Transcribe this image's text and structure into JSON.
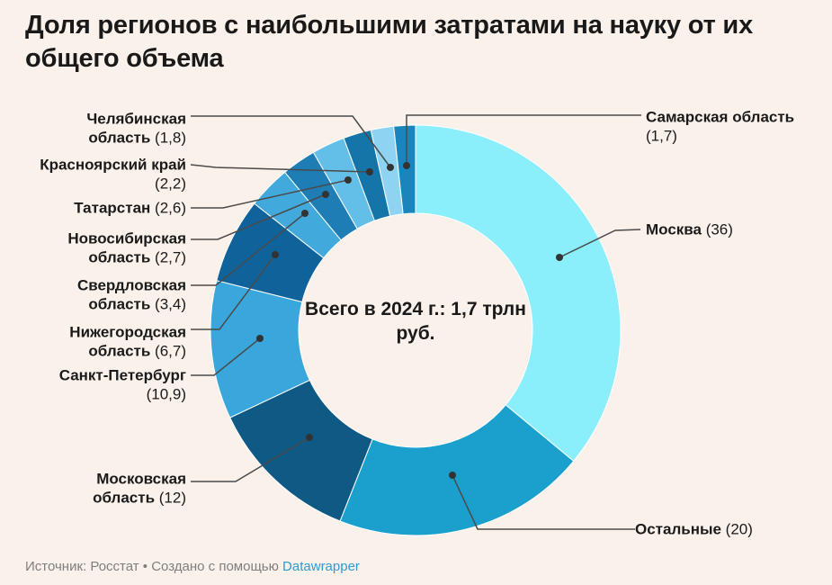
{
  "title": "Доля регионов с наибольшими затратами на науку от их общего объема",
  "footer": {
    "text": "Источник: Росстат • Создано с помощью ",
    "link_label": "Datawrapper"
  },
  "colors": {
    "background": "#FAF1EB",
    "title": "#191919",
    "label": "#1A1A1A",
    "leader": "#4A4A4A",
    "footer_text": "#7E7E7E",
    "link": "#2E9BD0",
    "slice_separator": "#FFFFFF"
  },
  "chart_data": {
    "type": "pie",
    "variant": "donut",
    "title": "Доля регионов с наибольшими затратами на науку от их общего объема",
    "center_label": "Всего в 2024 г.: 1,7 трлн руб.",
    "total": 100,
    "slices": [
      {
        "id": "moskva",
        "label": "Москва",
        "value": 36,
        "value_label": "(36)",
        "color": "#8AEFFA"
      },
      {
        "id": "ostalnye",
        "label": "Остальные",
        "value": 20,
        "value_label": "(20)",
        "color": "#1BA0CE"
      },
      {
        "id": "mosk_obl",
        "label": "Московская область",
        "value": 12,
        "value_label": "(12)",
        "color": "#0E5A84"
      },
      {
        "id": "spb",
        "label": "Санкт-Петербург",
        "value": 10.9,
        "value_label": "(10,9)",
        "color": "#3AA7DC"
      },
      {
        "id": "nizh",
        "label": "Нижегородская область",
        "value": 6.7,
        "value_label": "(6,7)",
        "color": "#10639A"
      },
      {
        "id": "sver",
        "label": "Свердловская область",
        "value": 3.4,
        "value_label": "(3,4)",
        "color": "#41A9DC"
      },
      {
        "id": "novo",
        "label": "Новосибирская область",
        "value": 2.7,
        "value_label": "(2,7)",
        "color": "#1E7DB4"
      },
      {
        "id": "tat",
        "label": "Татарстан",
        "value": 2.6,
        "value_label": "(2,6)",
        "color": "#64BFE8"
      },
      {
        "id": "kras",
        "label": "Красноярский край",
        "value": 2.2,
        "value_label": "(2,2)",
        "color": "#1574A8"
      },
      {
        "id": "chel",
        "label": "Челябинская область",
        "value": 1.8,
        "value_label": "(1,8)",
        "color": "#8ED4F2"
      },
      {
        "id": "samar",
        "label": "Самарская область",
        "value": 1.7,
        "value_label": "(1,7)",
        "color": "#1886BC"
      }
    ]
  }
}
